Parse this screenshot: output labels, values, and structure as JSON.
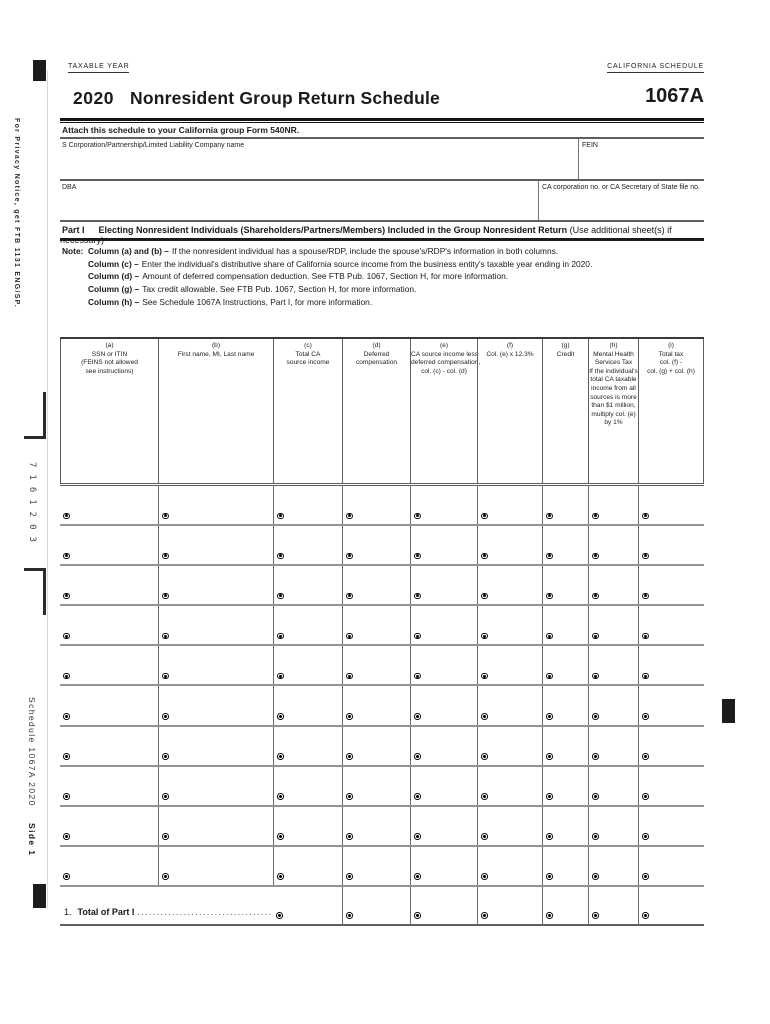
{
  "header": {
    "taxable_year_label": "TAXABLE YEAR",
    "california_schedule_label": "CALIFORNIA SCHEDULE",
    "year": "2020",
    "title": "Nonresident Group Return Schedule",
    "schedule_number": "1067A",
    "attach_line": "Attach this schedule to your California group Form 540NR."
  },
  "fields": {
    "company_name_label": "S Corporation/Partnership/Limited Liability Company name",
    "company_name_value": "",
    "fein_label": "FEIN",
    "fein_value": "",
    "dba_label": "DBA",
    "dba_value": "",
    "ca_corp_label": "CA corporation no. or CA Secretary of State file no.",
    "ca_corp_value": ""
  },
  "part1": {
    "label": "Part I",
    "heading_bold": "Electing Nonresident Individuals (Shareholders/Partners/Members) Included in the Group Nonresident Return",
    "heading_note": "(Use additional sheet(s) if necessary)",
    "note_label": "Note:",
    "notes": [
      {
        "bold": "Column (a) and (b) –",
        "text": "If the nonresident individual has a spouse/RDP, include the spouse's/RDP's information in both columns."
      },
      {
        "bold": "Column (c) –",
        "text": "Enter the individual's distributive share of California source income from the business entity's taxable year ending in 2020."
      },
      {
        "bold": "Column (d) –",
        "text": "Amount of deferred compensation deduction. See FTB Pub. 1067, Section H, for more information."
      },
      {
        "bold": "Column (g) –",
        "text": "Tax credit allowable. See FTB Pub. 1067, Section H, for more information."
      },
      {
        "bold": "Column (h) –",
        "text": "See Schedule 1067A Instructions, Part I, for more information."
      }
    ]
  },
  "table": {
    "columns": [
      {
        "key": "a",
        "lines": [
          "(a)",
          "SSN or ITIN",
          "(FEINS not allowed",
          "see instructions)"
        ]
      },
      {
        "key": "b",
        "lines": [
          "(b)",
          "First name, MI, Last name"
        ]
      },
      {
        "key": "c",
        "lines": [
          "(c)",
          "Total CA",
          "source income"
        ]
      },
      {
        "key": "d",
        "lines": [
          "(d)",
          "Deferred",
          "compensation"
        ]
      },
      {
        "key": "e",
        "lines": [
          "(e)",
          "CA source income less",
          "deferred compensation,",
          "col. (c) - col. (d)"
        ]
      },
      {
        "key": "f",
        "lines": [
          "(f)",
          "Col. (e) x 12.3%"
        ]
      },
      {
        "key": "g",
        "lines": [
          "(g)",
          "Credit"
        ]
      },
      {
        "key": "h",
        "lines": [
          "(h)",
          "Mental Health",
          "Services Tax",
          "If the individual's",
          "total CA taxable",
          "income from all",
          "sources is more",
          "than $1 million,",
          "multiply col. (e)",
          "by 1%"
        ]
      },
      {
        "key": "i",
        "lines": [
          "(i)",
          "Total tax",
          "col. (f) -",
          "col. (g) + col. (h)"
        ]
      }
    ],
    "data_row_count": 10,
    "row_values": [],
    "total_row": {
      "number": "1.",
      "label": "Total of Part I",
      "leader": "..................................................................",
      "total_columns": [
        "c",
        "d",
        "e",
        "f",
        "g",
        "h",
        "i"
      ]
    }
  },
  "sidebar": {
    "privacy_notice": "For Privacy Notice, get FTB 1131 ENG/SP.",
    "form_code": "7161203",
    "footer_schedule": "Schedule 1067A 2020",
    "footer_side": "Side 1"
  },
  "icons": {
    "row_marker": "radio-marker-icon"
  },
  "colors": {
    "ink": "#1a1a1a",
    "rule_gray": "#5f5f5f",
    "row_line_gray": "#949494"
  }
}
